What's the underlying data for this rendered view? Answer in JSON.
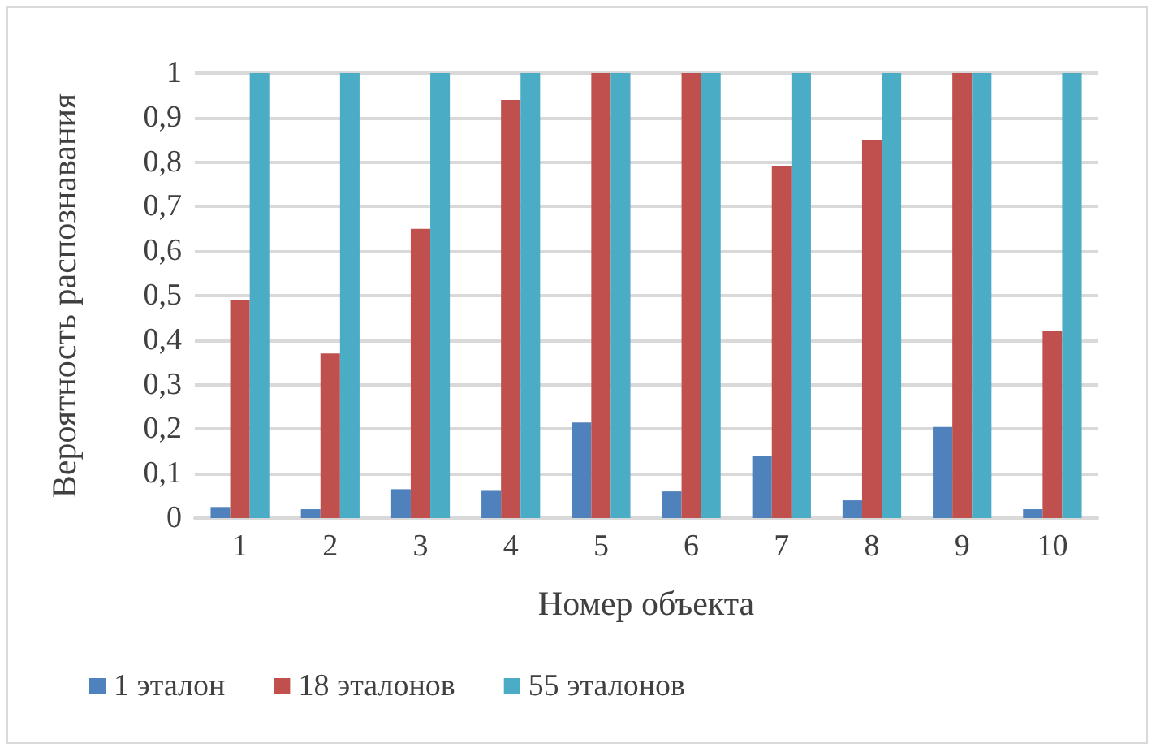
{
  "chart_data": {
    "type": "bar",
    "xlabel": "Номер объекта",
    "ylabel": "Вероятность распознавания",
    "categories": [
      "1",
      "2",
      "3",
      "4",
      "5",
      "6",
      "7",
      "8",
      "9",
      "10"
    ],
    "series": [
      {
        "name": "1 эталон",
        "color": "#4f81bd",
        "values": [
          0.025,
          0.02,
          0.065,
          0.063,
          0.215,
          0.06,
          0.14,
          0.04,
          0.205,
          0.02
        ]
      },
      {
        "name": "18 эталонов",
        "color": "#c0504d",
        "values": [
          0.49,
          0.37,
          0.65,
          0.94,
          1,
          1,
          0.79,
          0.85,
          1,
          0.42
        ]
      },
      {
        "name": "55 эталонов",
        "color": "#4bacc6",
        "values": [
          1,
          1,
          1,
          1,
          1,
          1,
          1,
          1,
          1,
          1
        ]
      }
    ],
    "ylim": [
      0,
      1
    ],
    "yticks": [
      0,
      {
        "value": 0.1,
        "label": "0,1"
      },
      {
        "value": 0.2,
        "label": "0,2"
      },
      {
        "value": 0.3,
        "label": "0,3"
      },
      {
        "value": 0.4,
        "label": "0,4"
      },
      {
        "value": 0.5,
        "label": "0,5"
      },
      {
        "value": 0.6,
        "label": "0,6"
      },
      {
        "value": 0.7,
        "label": "0,7"
      },
      {
        "value": 0.8,
        "label": "0,8"
      },
      {
        "value": 0.9,
        "label": "0,9"
      },
      1
    ],
    "grid": "y",
    "legend": "bottom"
  }
}
